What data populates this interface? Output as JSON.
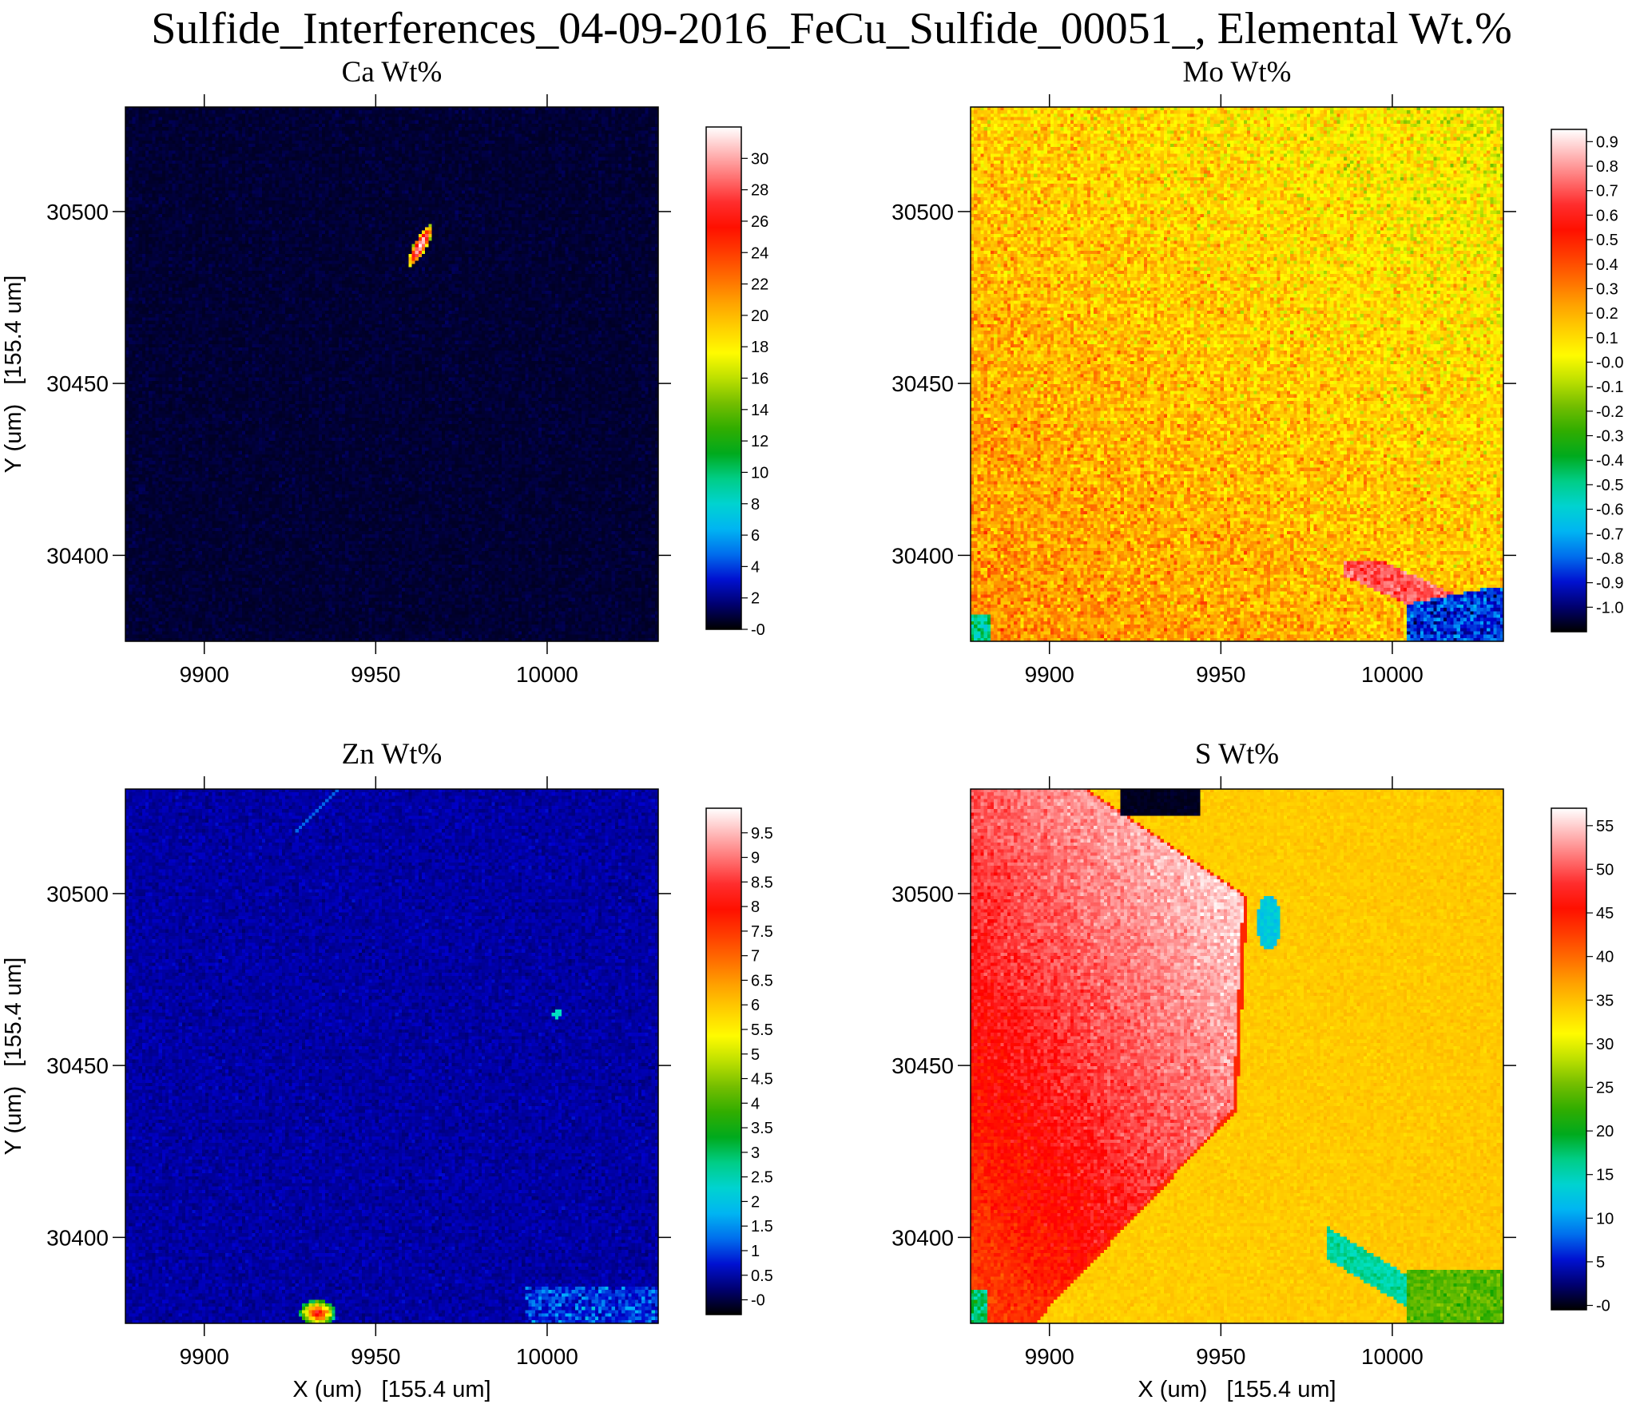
{
  "figure": {
    "title": "Sulfide_Interferences_04-09-2016_FeCu_Sulfide_00051_, Elemental Wt.%"
  },
  "colors": {
    "background": "#ffffff",
    "axis": "#000000",
    "colormap": [
      "#000000",
      "#0000cc",
      "#00aaff",
      "#00e0c0",
      "#00a000",
      "#7ac000",
      "#ffff00",
      "#ffb000",
      "#ff5000",
      "#ff0000",
      "#ff8080",
      "#ffffff"
    ]
  },
  "chart_data": [
    {
      "type": "heatmap",
      "id": "ca",
      "title": "Ca Wt%",
      "ylabel": "Y (um)   [155.4 um]",
      "xlabel": "",
      "xticks": [
        "9900",
        "9950",
        "10000"
      ],
      "yticks": [
        "30500",
        "30450",
        "30400"
      ],
      "xlim": [
        9877,
        10032.4
      ],
      "ylim": [
        30375,
        30530.4
      ],
      "colorbar": {
        "min": 0,
        "max": 32,
        "ticks": [
          "30",
          "28",
          "26",
          "24",
          "22",
          "20",
          "18",
          "16",
          "14",
          "12",
          "10",
          "8",
          "6",
          "4",
          "2",
          "-0"
        ]
      },
      "background_level": 0.5,
      "features": [
        {
          "shape": "blob",
          "description": "Ca-rich grain",
          "center": [
            9963,
            30490
          ],
          "peak_value": 31
        }
      ]
    },
    {
      "type": "heatmap",
      "id": "mo",
      "title": "Mo Wt%",
      "ylabel": "",
      "xlabel": "",
      "xticks": [
        "9900",
        "9950",
        "10000"
      ],
      "yticks": [
        "30500",
        "30450",
        "30400"
      ],
      "xlim": [
        9877,
        10032.4
      ],
      "ylim": [
        30375,
        30530.4
      ],
      "colorbar": {
        "min": -1.1,
        "max": 0.95,
        "ticks": [
          "0.9",
          "0.8",
          "0.7",
          "0.6",
          "0.5",
          "0.4",
          "0.3",
          "0.2",
          "0.1",
          "-0.0",
          "-0.1",
          "-0.2",
          "-0.3",
          "-0.4",
          "-0.5",
          "-0.6",
          "-0.7",
          "-0.8",
          "-0.9",
          "-1.0"
        ]
      },
      "background_level": 0.05,
      "features": [
        {
          "shape": "gradient",
          "description": "higher values toward lower-left",
          "value_range": [
            -0.1,
            0.45
          ]
        },
        {
          "shape": "streak",
          "description": "low band lower-right",
          "value": -0.9
        }
      ]
    },
    {
      "type": "heatmap",
      "id": "zn",
      "title": "Zn Wt%",
      "ylabel": "Y (um)   [155.4 um]",
      "xlabel": "X (um)   [155.4 um]",
      "xticks": [
        "9900",
        "9950",
        "10000"
      ],
      "yticks": [
        "30500",
        "30450",
        "30400"
      ],
      "xlim": [
        9877,
        10032.4
      ],
      "ylim": [
        30375,
        30530.4
      ],
      "colorbar": {
        "min": -0.3,
        "max": 10,
        "ticks": [
          "9.5",
          "9",
          "8.5",
          "8",
          "7.5",
          "7",
          "6.5",
          "6",
          "5.5",
          "5",
          "4.5",
          "4",
          "3.5",
          "3",
          "2.5",
          "2",
          "1.5",
          "1",
          "0.5",
          "-0"
        ]
      },
      "background_level": 0.5,
      "features": [
        {
          "shape": "spot",
          "description": "bright spot",
          "center": [
            10003,
            30465
          ],
          "peak_value": 2.5
        },
        {
          "shape": "cluster",
          "description": "hot spot at bottom edge",
          "center": [
            9933,
            30378
          ],
          "peak_value": 8
        }
      ]
    },
    {
      "type": "heatmap",
      "id": "s",
      "title": "S Wt%",
      "ylabel": "",
      "xlabel": "X (um)   [155.4 um]",
      "xticks": [
        "9900",
        "9950",
        "10000"
      ],
      "yticks": [
        "30500",
        "30450",
        "30400"
      ],
      "xlim": [
        9877,
        10032.4
      ],
      "ylim": [
        30375,
        30530.4
      ],
      "colorbar": {
        "min": -0.5,
        "max": 57,
        "ticks": [
          "55",
          "50",
          "45",
          "40",
          "35",
          "30",
          "25",
          "20",
          "15",
          "10",
          "5",
          "-0"
        ]
      },
      "background_level": 35,
      "features": [
        {
          "shape": "polygon",
          "description": "high-S grain (left)",
          "peak_value": 54
        },
        {
          "shape": "region",
          "description": "moderate-S matrix (right)",
          "value": 35
        },
        {
          "shape": "blob",
          "description": "low-S inclusion",
          "center": [
            9963,
            30490
          ],
          "value": 13
        },
        {
          "shape": "void",
          "description": "zero region top",
          "value": 0
        }
      ]
    }
  ]
}
